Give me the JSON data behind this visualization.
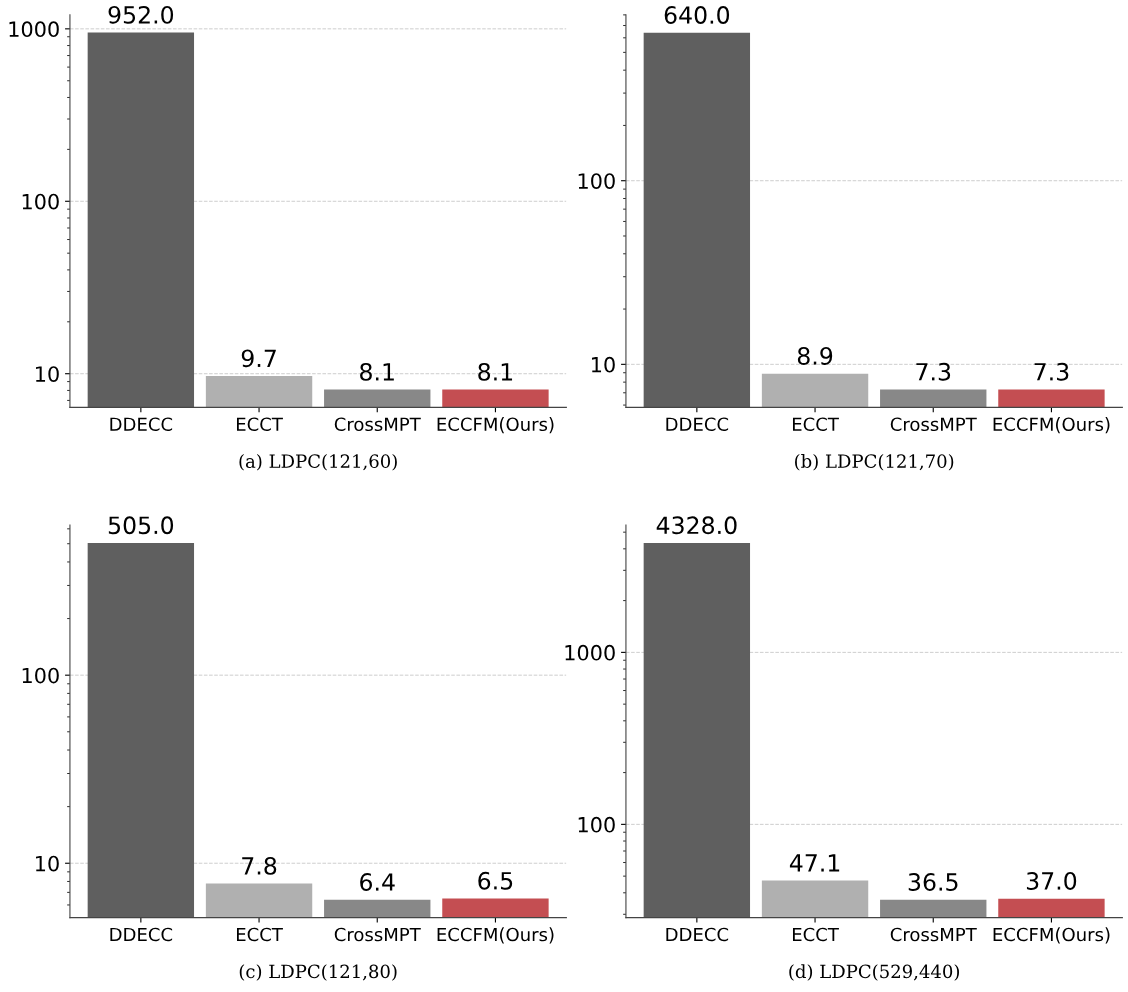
{
  "chart_data": [
    {
      "type": "bar",
      "xlabel": "(a) LDPC(121,60)",
      "categories": [
        "DDECC",
        "ECCT",
        "CrossMPT",
        "ECCFM(Ours)"
      ],
      "values": [
        952,
        9.7,
        8.1,
        8.1
      ],
      "value_labels": [
        "952.0",
        "9.7",
        "8.1",
        "8.1"
      ],
      "colors": [
        "#5f5f5f",
        "#b0b0b0",
        "#888888",
        "#c44e52"
      ],
      "log": true,
      "ylim": [
        6.38,
        1205
      ],
      "yticks": [
        10,
        100,
        1000
      ],
      "grid": "y"
    },
    {
      "type": "bar",
      "xlabel": "(b) LDPC(121,70)",
      "categories": [
        "DDECC",
        "ECCT",
        "CrossMPT",
        "ECCFM(Ours)"
      ],
      "values": [
        640,
        8.9,
        7.3,
        7.3
      ],
      "value_labels": [
        "640.0",
        "8.9",
        "7.3",
        "7.3"
      ],
      "colors": [
        "#5f5f5f",
        "#b0b0b0",
        "#888888",
        "#c44e52"
      ],
      "log": true,
      "ylim": [
        5.83,
        800
      ],
      "yticks": [
        10,
        100
      ],
      "grid": "y"
    },
    {
      "type": "bar",
      "xlabel": "(c) LDPC(121,80)",
      "categories": [
        "DDECC",
        "ECCT",
        "CrossMPT",
        "ECCFM(Ours)"
      ],
      "values": [
        505,
        7.8,
        6.4,
        6.5
      ],
      "value_labels": [
        "505.0",
        "7.8",
        "6.4",
        "6.5"
      ],
      "colors": [
        "#5f5f5f",
        "#b0b0b0",
        "#888888",
        "#c44e52"
      ],
      "log": true,
      "ylim": [
        5.14,
        628
      ],
      "yticks": [
        10,
        100
      ],
      "grid": "y"
    },
    {
      "type": "bar",
      "xlabel": "(d) LDPC(529,440)",
      "categories": [
        "DDECC",
        "ECCT",
        "CrossMPT",
        "ECCFM(Ours)"
      ],
      "values": [
        4328,
        47.1,
        36.5,
        37
      ],
      "value_labels": [
        "4328.0",
        "47.1",
        "36.5",
        "37.0"
      ],
      "colors": [
        "#5f5f5f",
        "#b0b0b0",
        "#888888",
        "#c44e52"
      ],
      "log": true,
      "ylim": [
        28.7,
        5495
      ],
      "yticks": [
        100,
        1000
      ],
      "grid": "y"
    }
  ]
}
